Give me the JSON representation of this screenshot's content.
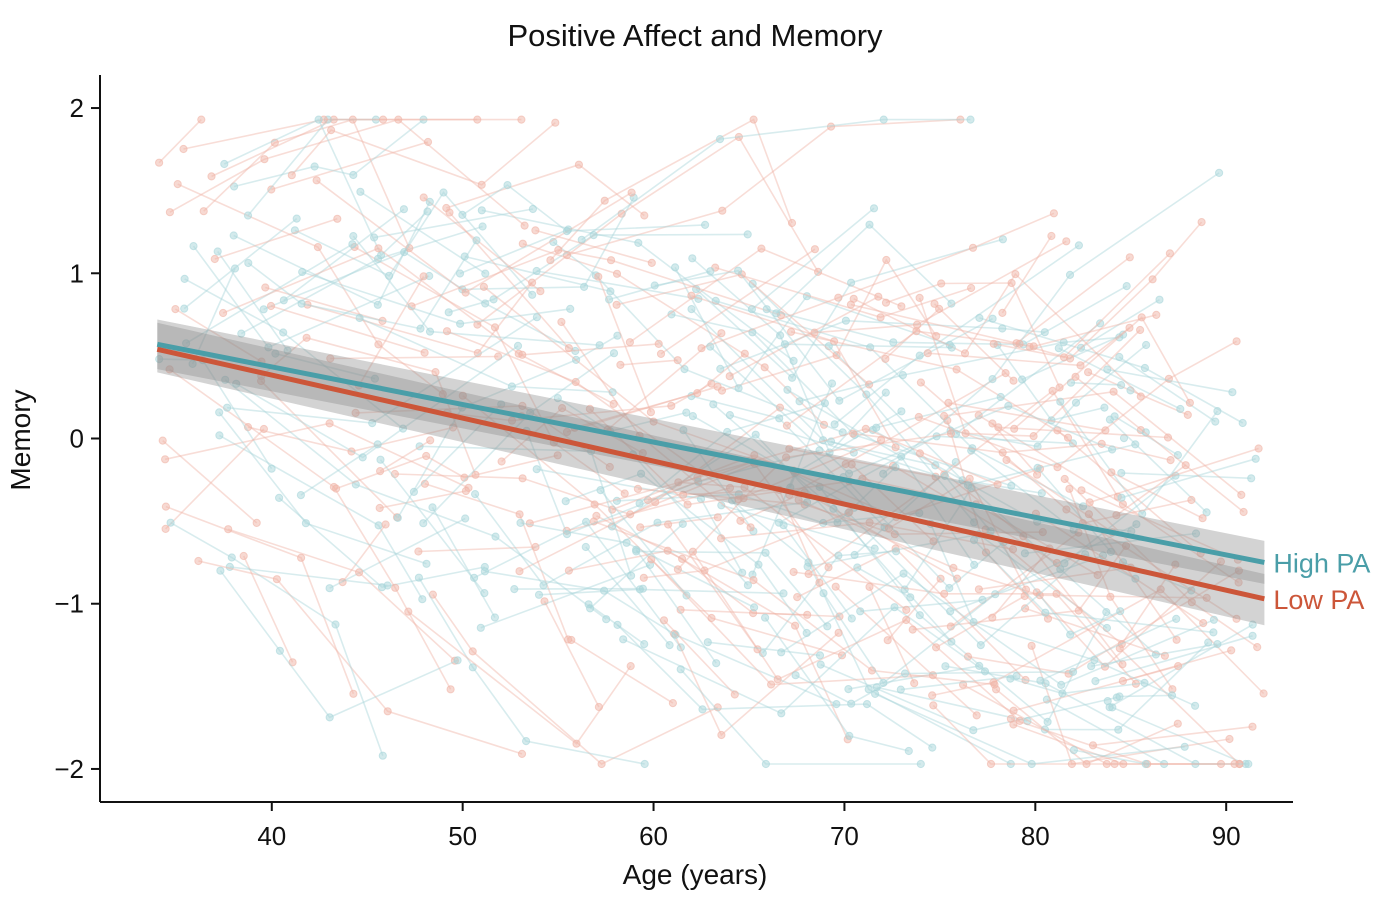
{
  "chart_data": {
    "type": "line",
    "title": "Positive Affect and Memory",
    "xlabel": "Age (years)",
    "ylabel": "Memory",
    "xlim": [
      31,
      93.5
    ],
    "ylim": [
      -2.2,
      2.2
    ],
    "x_ticks": [
      40,
      50,
      60,
      70,
      80,
      90
    ],
    "x_tick_labels": [
      "40",
      "50",
      "60",
      "70",
      "80",
      "90"
    ],
    "y_ticks": [
      -2,
      -1,
      0,
      1,
      2
    ],
    "y_tick_labels": [
      "−2",
      "−1",
      "0",
      "1",
      "2"
    ],
    "grid": false,
    "legend": "inline labels at right end of lines",
    "series": [
      {
        "name": "High PA",
        "color": "#4A9EA8",
        "x": [
          34,
          92
        ],
        "y": [
          0.57,
          -0.75
        ],
        "ci_lower": [
          0.42,
          -0.88
        ],
        "ci_upper": [
          0.72,
          -0.62
        ]
      },
      {
        "name": "Low PA",
        "color": "#CC5639",
        "x": [
          34,
          92
        ],
        "y": [
          0.54,
          -0.97
        ],
        "ci_lower": [
          0.4,
          -1.13
        ],
        "ci_upper": [
          0.7,
          -0.82
        ]
      }
    ],
    "raw_trajectories": {
      "description_colors": {
        "High PA": "#A8D5DA",
        "Low PA": "#F0B4A6"
      },
      "x_range": [
        34,
        92
      ],
      "y_range": [
        -2,
        2
      ]
    }
  }
}
